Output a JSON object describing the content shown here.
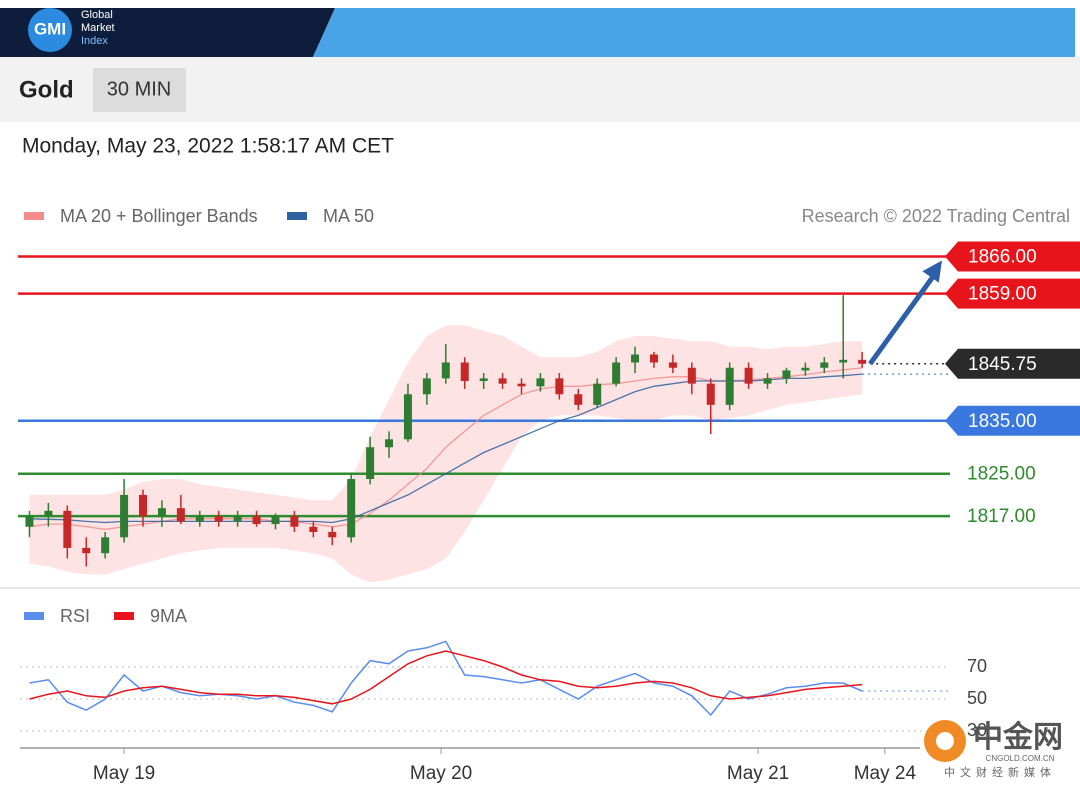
{
  "header": {
    "logo": "GMI",
    "brand": [
      "Global",
      "Market",
      "Index"
    ]
  },
  "instrument": "Gold",
  "interval": "30 MIN",
  "timestamp": "Monday, May 23, 2022 1:58:17 AM CET",
  "chart_data": [
    {
      "type": "candlestick",
      "credit": "Research © 2022 Trading Central",
      "up_color": "#2e7d32",
      "down_color": "#c62828",
      "xlim": [
        -0.5,
        46
      ],
      "ylim": [
        1804,
        1871
      ],
      "candles": [
        [
          1815,
          1818,
          1813,
          1817
        ],
        [
          1817,
          1819.5,
          1815,
          1818
        ],
        [
          1818,
          1819,
          1809,
          1811
        ],
        [
          1811,
          1813,
          1807.5,
          1810
        ],
        [
          1810,
          1814,
          1809,
          1813
        ],
        [
          1813,
          1824,
          1812,
          1821
        ],
        [
          1821,
          1822,
          1815,
          1817
        ],
        [
          1817,
          1820,
          1815,
          1818.5
        ],
        [
          1818.5,
          1821,
          1815.5,
          1816
        ],
        [
          1816,
          1818,
          1815,
          1817
        ],
        [
          1817,
          1818,
          1815,
          1816
        ],
        [
          1816,
          1818,
          1815,
          1817
        ],
        [
          1817,
          1818,
          1815,
          1815.5
        ],
        [
          1815.5,
          1817.5,
          1814.5,
          1817
        ],
        [
          1817,
          1818,
          1814,
          1815
        ],
        [
          1815,
          1816,
          1813,
          1814
        ],
        [
          1814,
          1815,
          1811.5,
          1813
        ],
        [
          1813,
          1825,
          1812,
          1824
        ],
        [
          1824,
          1832,
          1823,
          1830
        ],
        [
          1830,
          1833,
          1828,
          1831.5
        ],
        [
          1831.5,
          1842,
          1831,
          1840
        ],
        [
          1840,
          1844,
          1838,
          1843
        ],
        [
          1843,
          1849.5,
          1842,
          1846
        ],
        [
          1846,
          1847,
          1841,
          1842.5
        ],
        [
          1842.5,
          1844,
          1841,
          1843
        ],
        [
          1843,
          1844,
          1841,
          1842
        ],
        [
          1842,
          1843,
          1840,
          1841.5
        ],
        [
          1841.5,
          1844,
          1840.5,
          1843
        ],
        [
          1843,
          1844,
          1839,
          1840
        ],
        [
          1840,
          1841,
          1837,
          1838
        ],
        [
          1838,
          1843,
          1837.5,
          1842
        ],
        [
          1842,
          1847,
          1841.5,
          1846
        ],
        [
          1846,
          1849,
          1844,
          1847.5
        ],
        [
          1847.5,
          1848,
          1845,
          1846
        ],
        [
          1846,
          1847.5,
          1844,
          1845
        ],
        [
          1845,
          1846,
          1840,
          1842
        ],
        [
          1842,
          1843,
          1832.5,
          1838
        ],
        [
          1838,
          1846,
          1837,
          1845
        ],
        [
          1845,
          1846,
          1841,
          1842
        ],
        [
          1842,
          1844,
          1841,
          1843
        ],
        [
          1843,
          1845,
          1842,
          1844.5
        ],
        [
          1844.5,
          1846,
          1843.5,
          1845
        ],
        [
          1845,
          1847,
          1844,
          1846
        ],
        [
          1846,
          1858.7,
          1843,
          1846.5
        ],
        [
          1846.5,
          1848,
          1845,
          1845.75
        ]
      ],
      "series": [
        {
          "name": "MA 20 + Bollinger Bands",
          "color": "#f28b8b",
          "values": [
            1815,
            1815.5,
            1815.5,
            1815,
            1814.5,
            1815,
            1815.5,
            1816,
            1816.5,
            1816.5,
            1816.5,
            1816.5,
            1816.5,
            1816,
            1816,
            1815.5,
            1815,
            1815.5,
            1817.5,
            1820,
            1823,
            1826,
            1830,
            1833,
            1836,
            1838,
            1840,
            1841,
            1841.5,
            1841.5,
            1841.8,
            1842,
            1842.5,
            1843,
            1843.3,
            1843.3,
            1842.5,
            1842.5,
            1842.7,
            1843,
            1843.3,
            1843.7,
            1844.2,
            1844.6,
            1845
          ]
        },
        {
          "name": "MA 50",
          "color": "#2f5f9e",
          "values": [
            1816.5,
            1816.4,
            1816.3,
            1816,
            1815.8,
            1816,
            1816,
            1816,
            1816,
            1816,
            1816,
            1816,
            1816,
            1816,
            1816,
            1816,
            1815.8,
            1816.5,
            1818,
            1819.5,
            1821,
            1823,
            1825,
            1827,
            1829,
            1830.5,
            1832,
            1833.5,
            1835,
            1836,
            1837.5,
            1839,
            1840.5,
            1841.5,
            1842,
            1842.5,
            1842.5,
            1842.5,
            1842.5,
            1842.7,
            1843,
            1843,
            1843.3,
            1843.5,
            1843.8
          ]
        }
      ],
      "bollinger": {
        "color": "#fde3e3",
        "upper": [
          1821,
          1821,
          1821,
          1821,
          1821,
          1822,
          1823.5,
          1824,
          1824,
          1823,
          1822.5,
          1822,
          1821.5,
          1821,
          1820.5,
          1820,
          1820,
          1824,
          1832,
          1839,
          1846,
          1851,
          1853,
          1853,
          1852,
          1851,
          1849,
          1847,
          1847,
          1847,
          1848,
          1850,
          1851,
          1851,
          1850.5,
          1850,
          1850,
          1849,
          1849,
          1848.5,
          1849,
          1849,
          1849.5,
          1850,
          1850
        ],
        "lower": [
          1808,
          1807.5,
          1806.5,
          1806,
          1806,
          1807,
          1808,
          1809,
          1810,
          1810.5,
          1811,
          1811,
          1811,
          1811,
          1810.5,
          1810,
          1809,
          1806,
          1804.5,
          1805,
          1806,
          1807,
          1809,
          1814,
          1820,
          1826,
          1832,
          1835,
          1836,
          1836,
          1836,
          1835.5,
          1835,
          1835,
          1836,
          1836,
          1835,
          1835.5,
          1836,
          1837,
          1838,
          1838.5,
          1839,
          1839.5,
          1840
        ]
      },
      "levels": [
        {
          "value": 1866,
          "label": "1866.00",
          "color": "#e8141b",
          "style": "solid",
          "tag": true
        },
        {
          "value": 1859,
          "label": "1859.00",
          "color": "#e8141b",
          "style": "solid",
          "tag": true
        },
        {
          "value": 1845.75,
          "label": "1845.75",
          "color": "#2a2a2a",
          "style": "dotted",
          "tag": true
        },
        {
          "value": 1835,
          "label": "1835.00",
          "color": "#3a78e0",
          "style": "solid",
          "tag": true
        },
        {
          "value": 1825,
          "label": "1825.00",
          "color": "#2e8b2e",
          "style": "solid",
          "tag": false
        },
        {
          "value": 1817,
          "label": "1817.00",
          "color": "#2e8b2e",
          "style": "solid",
          "tag": false
        }
      ]
    },
    {
      "type": "line",
      "xlim": [
        -0.5,
        46
      ],
      "ylim": [
        20,
        90
      ],
      "yticks": [
        70,
        50,
        30
      ],
      "grid": true,
      "xticks": [
        {
          "value": 5,
          "label": "May 19"
        },
        {
          "value": 21.75,
          "label": "May 20"
        },
        {
          "value": 38.5,
          "label": "May 21"
        },
        {
          "value": 45.2,
          "label": "May 24"
        }
      ],
      "series": [
        {
          "name": "RSI",
          "color": "#5b8def",
          "values": [
            60,
            62,
            48,
            43,
            50,
            65,
            55,
            58,
            54,
            52,
            53,
            52,
            50,
            52,
            48,
            46,
            42,
            60,
            74,
            72,
            80,
            82,
            86,
            65,
            64,
            62,
            60,
            62,
            56,
            50,
            58,
            62,
            66,
            60,
            58,
            52,
            40,
            55,
            50,
            53,
            57,
            58,
            60,
            60,
            55
          ]
        },
        {
          "name": "9MA",
          "color": "#e8141b",
          "values": [
            50,
            53,
            55,
            52,
            51,
            55,
            57,
            58,
            56,
            54,
            53,
            53,
            52,
            52,
            51,
            49,
            47,
            50,
            56,
            64,
            72,
            77,
            80,
            77,
            74,
            70,
            65,
            62,
            61,
            58,
            57,
            58,
            60,
            61,
            60,
            57,
            52,
            50,
            51,
            52,
            54,
            56,
            57,
            58,
            59
          ]
        }
      ]
    }
  ],
  "watermark": {
    "name": "中金网",
    "domain": "CNGOLD.COM.CN",
    "slogan": "中文财经新媒体"
  }
}
